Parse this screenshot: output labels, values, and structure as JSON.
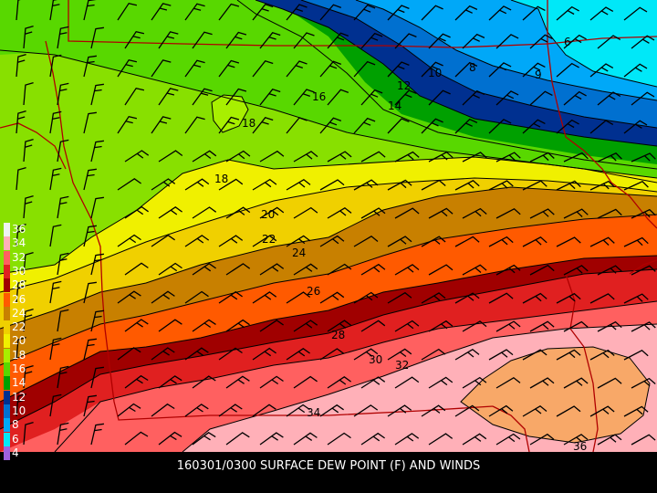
{
  "caption": "160301/0300 SURFACE DEW POINT (F) AND WINDS",
  "legend": [
    {
      "label": "36",
      "color": "#eef3f3"
    },
    {
      "label": "34",
      "color": "#ffb0b8"
    },
    {
      "label": "32",
      "color": "#ff6060"
    },
    {
      "label": "30",
      "color": "#e02020"
    },
    {
      "label": "28",
      "color": "#a00000"
    },
    {
      "label": "26",
      "color": "#ff5a00"
    },
    {
      "label": "24",
      "color": "#c88000"
    },
    {
      "label": "22",
      "color": "#f0d000"
    },
    {
      "label": "20",
      "color": "#f0f000"
    },
    {
      "label": "18",
      "color": "#a8ef00"
    },
    {
      "label": "16",
      "color": "#58d800"
    },
    {
      "label": "14",
      "color": "#00a000"
    },
    {
      "label": "12",
      "color": "#003090"
    },
    {
      "label": "10",
      "color": "#0070d0"
    },
    {
      "label": "8",
      "color": "#00a8f8"
    },
    {
      "label": "6",
      "color": "#00e8f8"
    },
    {
      "label": "4",
      "color": "#a060e0"
    }
  ],
  "contour_labels": [
    "6",
    "8",
    "9",
    "10",
    "12",
    "14",
    "16",
    "18",
    "18",
    "20",
    "22",
    "24",
    "26",
    "28",
    "30",
    "32",
    "34",
    "36"
  ],
  "colors": {
    "background": "#000000",
    "borders": "#b00000",
    "contours": "#000000",
    "barbs": "#000000"
  }
}
